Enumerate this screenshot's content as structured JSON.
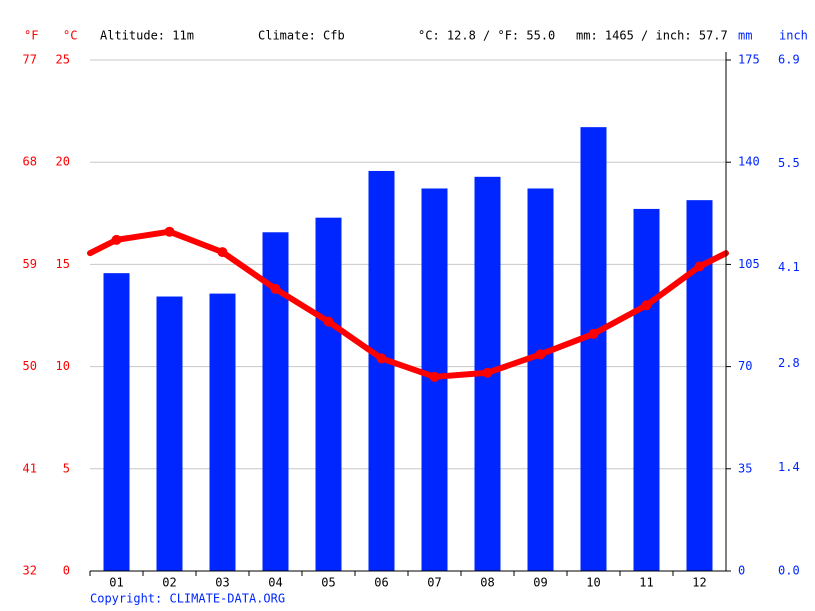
{
  "chart_data": {
    "type": "bar",
    "altitude": "Altitude: 11m",
    "climate": "Climate: Cfb",
    "temp_summary": "°C: 12.8 / °F: 55.0",
    "precip_summary": "mm: 1465 / inch: 57.7",
    "copyright": "Copyright: CLIMATE-DATA.ORG",
    "y_unit_f": "°F",
    "y_unit": "°C",
    "y2_unit": "mm",
    "y2_unit_inch": "inch",
    "categories": [
      "01",
      "02",
      "03",
      "04",
      "05",
      "06",
      "07",
      "08",
      "09",
      "10",
      "11",
      "12"
    ],
    "series": [
      {
        "type": "bar",
        "axis": "y2",
        "color": "#0026ff",
        "values": [
          102,
          94,
          95,
          116,
          121,
          137,
          131,
          135,
          131,
          152,
          124,
          127
        ]
      },
      {
        "type": "line",
        "axis": "y",
        "color": "#ff0000",
        "values": [
          16.2,
          16.6,
          15.6,
          13.8,
          12.2,
          10.4,
          9.5,
          9.7,
          10.6,
          11.6,
          13.0,
          14.9
        ]
      }
    ],
    "ylim": [
      0,
      25
    ],
    "yticks": [
      0,
      5,
      10,
      15,
      20,
      25
    ],
    "ylim_f": [
      32,
      77
    ],
    "yticks_f": [
      32,
      41,
      50,
      59,
      68,
      77
    ],
    "y2lim": [
      0,
      175
    ],
    "y2ticks": [
      0,
      35,
      70,
      105,
      140,
      175
    ],
    "y2lim_inch": [
      0,
      6.9
    ],
    "y2ticks_inch": [
      {
        "value": 0,
        "label": "0.0"
      },
      1.4,
      2.8,
      4.1,
      5.5,
      6.9
    ],
    "grid": true
  }
}
